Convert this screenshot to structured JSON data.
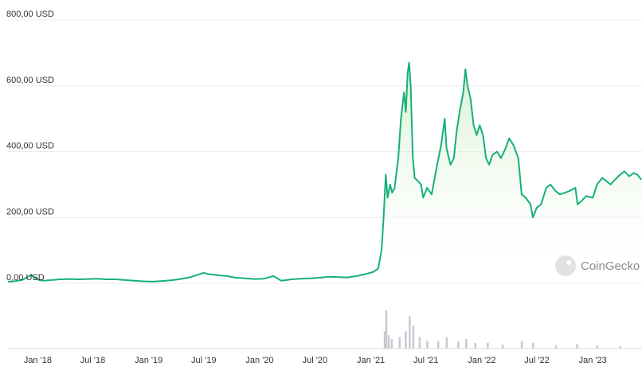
{
  "chart_data": {
    "type": "area",
    "title": "",
    "xlabel": "",
    "ylabel": "",
    "ylim": [
      0,
      800
    ],
    "y_ticks": [
      {
        "value": 0,
        "label": "0,00 USD"
      },
      {
        "value": 200,
        "label": "200,00 USD"
      },
      {
        "value": 400,
        "label": "400,00 USD"
      },
      {
        "value": 600,
        "label": "600,00 USD"
      },
      {
        "value": 800,
        "label": "800,00 USD"
      }
    ],
    "x_ticks": [
      {
        "date": "2018-01-01",
        "label": "Jan '18"
      },
      {
        "date": "2018-07-01",
        "label": "Jul '18"
      },
      {
        "date": "2019-01-01",
        "label": "Jan '19"
      },
      {
        "date": "2019-07-01",
        "label": "Jul '19"
      },
      {
        "date": "2020-01-01",
        "label": "Jan '20"
      },
      {
        "date": "2020-07-01",
        "label": "Jul '20"
      },
      {
        "date": "2021-01-01",
        "label": "Jan '21"
      },
      {
        "date": "2021-07-01",
        "label": "Jul '21"
      },
      {
        "date": "2022-01-01",
        "label": "Jan '22"
      },
      {
        "date": "2022-07-01",
        "label": "Jul '22"
      },
      {
        "date": "2023-01-01",
        "label": "Jan '23"
      }
    ],
    "xlim": [
      "2017-09-25",
      "2023-06-12"
    ],
    "grid": true,
    "line_color": "#16b07a",
    "area_color": "#c9ecc0",
    "series": [
      {
        "values": [
          [
            "2017-09-25",
            5
          ],
          [
            "2017-10-15",
            6
          ],
          [
            "2017-11-10",
            10
          ],
          [
            "2017-12-01",
            20
          ],
          [
            "2017-12-10",
            26
          ],
          [
            "2017-12-20",
            18
          ],
          [
            "2018-01-05",
            10
          ],
          [
            "2018-01-20",
            8
          ],
          [
            "2018-02-15",
            10
          ],
          [
            "2018-03-15",
            12
          ],
          [
            "2018-04-15",
            13
          ],
          [
            "2018-05-15",
            12
          ],
          [
            "2018-06-15",
            13
          ],
          [
            "2018-07-15",
            14
          ],
          [
            "2018-08-15",
            12
          ],
          [
            "2018-09-15",
            12
          ],
          [
            "2018-10-15",
            10
          ],
          [
            "2018-11-15",
            8
          ],
          [
            "2018-12-15",
            6
          ],
          [
            "2019-01-15",
            5
          ],
          [
            "2019-02-15",
            7
          ],
          [
            "2019-03-15",
            9
          ],
          [
            "2019-04-15",
            13
          ],
          [
            "2019-05-15",
            18
          ],
          [
            "2019-06-15",
            27
          ],
          [
            "2019-07-01",
            32
          ],
          [
            "2019-07-15",
            28
          ],
          [
            "2019-08-15",
            25
          ],
          [
            "2019-09-15",
            22
          ],
          [
            "2019-10-15",
            17
          ],
          [
            "2019-11-15",
            15
          ],
          [
            "2019-12-15",
            13
          ],
          [
            "2020-01-15",
            14
          ],
          [
            "2020-02-15",
            22
          ],
          [
            "2020-03-12",
            8
          ],
          [
            "2020-04-15",
            12
          ],
          [
            "2020-05-15",
            14
          ],
          [
            "2020-06-15",
            15
          ],
          [
            "2020-07-15",
            17
          ],
          [
            "2020-08-15",
            20
          ],
          [
            "2020-09-15",
            19
          ],
          [
            "2020-10-15",
            18
          ],
          [
            "2020-11-15",
            22
          ],
          [
            "2020-12-15",
            28
          ],
          [
            "2021-01-10",
            35
          ],
          [
            "2021-01-25",
            45
          ],
          [
            "2021-02-05",
            100
          ],
          [
            "2021-02-12",
            200
          ],
          [
            "2021-02-19",
            330
          ],
          [
            "2021-02-25",
            260
          ],
          [
            "2021-03-05",
            300
          ],
          [
            "2021-03-12",
            275
          ],
          [
            "2021-03-20",
            290
          ],
          [
            "2021-04-01",
            380
          ],
          [
            "2021-04-10",
            500
          ],
          [
            "2021-04-20",
            580
          ],
          [
            "2021-04-26",
            520
          ],
          [
            "2021-05-02",
            640
          ],
          [
            "2021-05-07",
            670
          ],
          [
            "2021-05-12",
            600
          ],
          [
            "2021-05-19",
            380
          ],
          [
            "2021-05-25",
            320
          ],
          [
            "2021-06-05",
            310
          ],
          [
            "2021-06-15",
            300
          ],
          [
            "2021-06-22",
            260
          ],
          [
            "2021-07-05",
            290
          ],
          [
            "2021-07-20",
            270
          ],
          [
            "2021-08-05",
            350
          ],
          [
            "2021-08-20",
            420
          ],
          [
            "2021-09-01",
            500
          ],
          [
            "2021-09-07",
            410
          ],
          [
            "2021-09-20",
            360
          ],
          [
            "2021-10-01",
            380
          ],
          [
            "2021-10-10",
            460
          ],
          [
            "2021-10-20",
            520
          ],
          [
            "2021-11-01",
            580
          ],
          [
            "2021-11-08",
            650
          ],
          [
            "2021-11-15",
            600
          ],
          [
            "2021-11-25",
            560
          ],
          [
            "2021-12-05",
            480
          ],
          [
            "2021-12-15",
            450
          ],
          [
            "2021-12-25",
            480
          ],
          [
            "2022-01-05",
            450
          ],
          [
            "2022-01-15",
            380
          ],
          [
            "2022-01-25",
            360
          ],
          [
            "2022-02-05",
            390
          ],
          [
            "2022-02-20",
            400
          ],
          [
            "2022-03-05",
            380
          ],
          [
            "2022-03-20",
            410
          ],
          [
            "2022-04-01",
            440
          ],
          [
            "2022-04-15",
            420
          ],
          [
            "2022-05-01",
            380
          ],
          [
            "2022-05-12",
            270
          ],
          [
            "2022-05-25",
            260
          ],
          [
            "2022-06-10",
            240
          ],
          [
            "2022-06-18",
            200
          ],
          [
            "2022-07-01",
            230
          ],
          [
            "2022-07-15",
            240
          ],
          [
            "2022-08-01",
            290
          ],
          [
            "2022-08-15",
            300
          ],
          [
            "2022-09-01",
            280
          ],
          [
            "2022-09-15",
            270
          ],
          [
            "2022-10-01",
            275
          ],
          [
            "2022-10-15",
            280
          ],
          [
            "2022-11-05",
            290
          ],
          [
            "2022-11-12",
            240
          ],
          [
            "2022-11-25",
            250
          ],
          [
            "2022-12-10",
            265
          ],
          [
            "2023-01-01",
            260
          ],
          [
            "2023-01-15",
            300
          ],
          [
            "2023-02-01",
            320
          ],
          [
            "2023-02-15",
            310
          ],
          [
            "2023-03-01",
            300
          ],
          [
            "2023-03-15",
            315
          ],
          [
            "2023-04-01",
            330
          ],
          [
            "2023-04-15",
            340
          ],
          [
            "2023-05-01",
            325
          ],
          [
            "2023-05-15",
            335
          ],
          [
            "2023-05-28",
            330
          ],
          [
            "2023-06-10",
            315
          ]
        ]
      }
    ],
    "volume": [
      [
        "2021-02-15",
        0.45
      ],
      [
        "2021-02-20",
        1.0
      ],
      [
        "2021-02-28",
        0.35
      ],
      [
        "2021-03-10",
        0.25
      ],
      [
        "2021-04-05",
        0.3
      ],
      [
        "2021-04-25",
        0.45
      ],
      [
        "2021-05-08",
        0.85
      ],
      [
        "2021-05-20",
        0.6
      ],
      [
        "2021-06-10",
        0.3
      ],
      [
        "2021-07-05",
        0.2
      ],
      [
        "2021-08-10",
        0.2
      ],
      [
        "2021-09-07",
        0.3
      ],
      [
        "2021-10-15",
        0.18
      ],
      [
        "2021-11-10",
        0.25
      ],
      [
        "2021-12-10",
        0.15
      ],
      [
        "2022-01-20",
        0.15
      ],
      [
        "2022-03-10",
        0.1
      ],
      [
        "2022-05-12",
        0.2
      ],
      [
        "2022-06-18",
        0.15
      ],
      [
        "2022-09-01",
        0.08
      ],
      [
        "2022-11-10",
        0.12
      ],
      [
        "2023-01-15",
        0.08
      ],
      [
        "2023-04-01",
        0.07
      ]
    ]
  },
  "watermark": {
    "brand": "CoinGecko",
    "icon": "gecko-logo-icon"
  }
}
